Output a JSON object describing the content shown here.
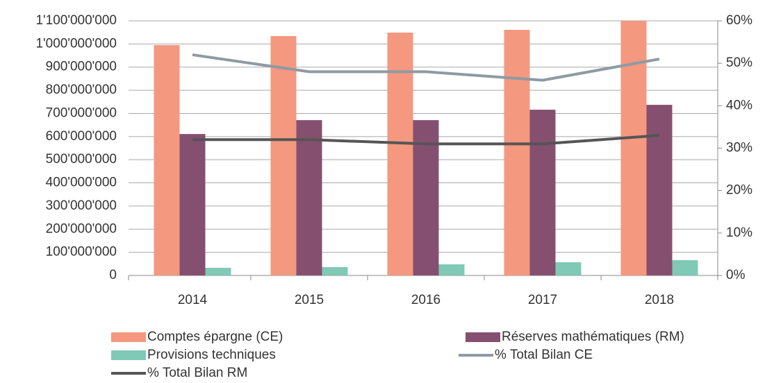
{
  "chart_data": {
    "type": "bar",
    "categories": [
      "2014",
      "2015",
      "2016",
      "2017",
      "2018"
    ],
    "series": [
      {
        "name": "Comptes épargne (CE)",
        "color": "#f4987f",
        "axis": "y",
        "values": [
          995000000,
          1034000000,
          1049000000,
          1061000000,
          1100000000
        ]
      },
      {
        "name": "Réserves mathématiques (RM)",
        "color": "#85506f",
        "axis": "y",
        "values": [
          611000000,
          671000000,
          671000000,
          716000000,
          737000000
        ]
      },
      {
        "name": "Provisions techniques",
        "color": "#7fc9b6",
        "axis": "y",
        "values": [
          33000000,
          36000000,
          48000000,
          57000000,
          66000000
        ]
      },
      {
        "name": "% Total Bilan CE",
        "color": "#8e9aa3",
        "axis": "y2",
        "type": "line",
        "values": [
          52,
          48,
          48,
          46,
          51
        ]
      },
      {
        "name": "% Total Bilan RM",
        "color": "#555555",
        "axis": "y2",
        "type": "line",
        "values": [
          32,
          32,
          31,
          31,
          33
        ]
      }
    ],
    "ylim": [
      0,
      1100000000
    ],
    "yticks": [
      0,
      {
        "value": 100000000,
        "label": "100'000'000"
      },
      {
        "value": 200000000,
        "label": "200'000'000"
      },
      {
        "value": 300000000,
        "label": "300'000'000"
      },
      {
        "value": 400000000,
        "label": "400'000'000"
      },
      {
        "value": 500000000,
        "label": "500'000'000"
      },
      {
        "value": 600000000,
        "label": "600'000'000"
      },
      {
        "value": 700000000,
        "label": "700'000'000"
      },
      {
        "value": 800000000,
        "label": "800'000'000"
      },
      {
        "value": 900000000,
        "label": "900'000'000"
      },
      {
        "value": 1000000000,
        "label": "1'000'000'000"
      },
      {
        "value": 1100000000,
        "label": "1'100'000'000"
      }
    ],
    "y2lim": [
      0,
      60
    ],
    "y2ticks": [
      {
        "value": 0,
        "label": "0%"
      },
      {
        "value": 10,
        "label": "10%"
      },
      {
        "value": 20,
        "label": "20%"
      },
      {
        "value": 30,
        "label": "30%"
      },
      {
        "value": 40,
        "label": "40%"
      },
      {
        "value": 50,
        "label": "50%"
      },
      {
        "value": 60,
        "label": "60%"
      }
    ],
    "grid": true,
    "legend": "bottom"
  }
}
